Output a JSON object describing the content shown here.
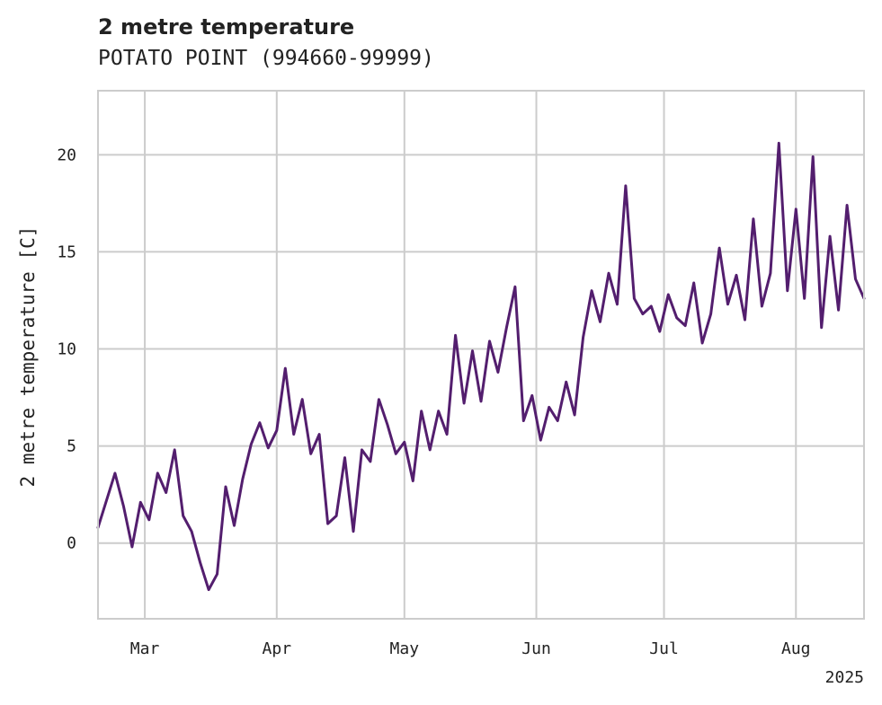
{
  "chart_data": {
    "type": "line",
    "title": "2 metre temperature",
    "subtitle": "POTATO POINT (994660-99999)",
    "ylabel": "2 metre temperature [C]",
    "xlabel": "",
    "year_label": "2025",
    "x_ticks": [
      {
        "date": "2025-03-01",
        "label": "Mar"
      },
      {
        "date": "2025-04-01",
        "label": "Apr"
      },
      {
        "date": "2025-05-01",
        "label": "May"
      },
      {
        "date": "2025-06-01",
        "label": "Jun"
      },
      {
        "date": "2025-07-01",
        "label": "Jul"
      },
      {
        "date": "2025-08-01",
        "label": "Aug"
      }
    ],
    "y_ticks": [
      0,
      5,
      10,
      15,
      20
    ],
    "xlim": [
      "2025-02-18",
      "2025-08-17"
    ],
    "ylim": [
      -3.9,
      23.3
    ],
    "grid": true,
    "series": [
      {
        "color": "#531e6e",
        "x": [
          "2025-02-18",
          "2025-02-20",
          "2025-02-22",
          "2025-02-24",
          "2025-02-26",
          "2025-02-28",
          "2025-03-02",
          "2025-03-04",
          "2025-03-06",
          "2025-03-08",
          "2025-03-10",
          "2025-03-12",
          "2025-03-14",
          "2025-03-16",
          "2025-03-18",
          "2025-03-20",
          "2025-03-22",
          "2025-03-24",
          "2025-03-26",
          "2025-03-28",
          "2025-03-30",
          "2025-04-01",
          "2025-04-03",
          "2025-04-05",
          "2025-04-07",
          "2025-04-09",
          "2025-04-11",
          "2025-04-13",
          "2025-04-15",
          "2025-04-17",
          "2025-04-19",
          "2025-04-21",
          "2025-04-23",
          "2025-04-25",
          "2025-04-27",
          "2025-04-29",
          "2025-05-01",
          "2025-05-03",
          "2025-05-05",
          "2025-05-07",
          "2025-05-09",
          "2025-05-11",
          "2025-05-13",
          "2025-05-15",
          "2025-05-17",
          "2025-05-19",
          "2025-05-21",
          "2025-05-23",
          "2025-05-25",
          "2025-05-27",
          "2025-05-29",
          "2025-05-31",
          "2025-06-02",
          "2025-06-04",
          "2025-06-06",
          "2025-06-08",
          "2025-06-10",
          "2025-06-12",
          "2025-06-14",
          "2025-06-16",
          "2025-06-18",
          "2025-06-20",
          "2025-06-22",
          "2025-06-24",
          "2025-06-26",
          "2025-06-28",
          "2025-06-30",
          "2025-07-02",
          "2025-07-04",
          "2025-07-06",
          "2025-07-08",
          "2025-07-10",
          "2025-07-12",
          "2025-07-14",
          "2025-07-16",
          "2025-07-18",
          "2025-07-20",
          "2025-07-22",
          "2025-07-24",
          "2025-07-26",
          "2025-07-28",
          "2025-07-30",
          "2025-08-01",
          "2025-08-03",
          "2025-08-05",
          "2025-08-07",
          "2025-08-09",
          "2025-08-11",
          "2025-08-13",
          "2025-08-15",
          "2025-08-17"
        ],
        "y": [
          0.8,
          2.2,
          3.6,
          1.9,
          -0.2,
          2.1,
          1.2,
          3.6,
          2.6,
          4.8,
          1.4,
          0.6,
          -1.0,
          -2.4,
          -1.6,
          2.9,
          0.9,
          3.3,
          5.1,
          6.2,
          4.9,
          5.8,
          9.0,
          5.6,
          7.4,
          4.6,
          5.6,
          1.0,
          1.4,
          4.4,
          0.6,
          4.8,
          4.2,
          7.4,
          6.1,
          4.6,
          5.2,
          3.2,
          6.8,
          4.8,
          6.8,
          5.6,
          10.7,
          7.2,
          9.9,
          7.3,
          10.4,
          8.8,
          11.1,
          13.2,
          6.3,
          7.6,
          5.3,
          7.0,
          6.3,
          8.3,
          6.6,
          10.6,
          13.0,
          11.4,
          13.9,
          12.3,
          18.4,
          12.6,
          11.8,
          12.2,
          10.9,
          12.8,
          11.6,
          11.2,
          13.4,
          10.3,
          11.8,
          15.2,
          12.3,
          13.8,
          11.5,
          16.7,
          12.2,
          13.9,
          20.6,
          13.0,
          17.2,
          12.6,
          19.9,
          11.1,
          15.8,
          12.0,
          17.4,
          13.6,
          12.6
        ]
      }
    ]
  }
}
